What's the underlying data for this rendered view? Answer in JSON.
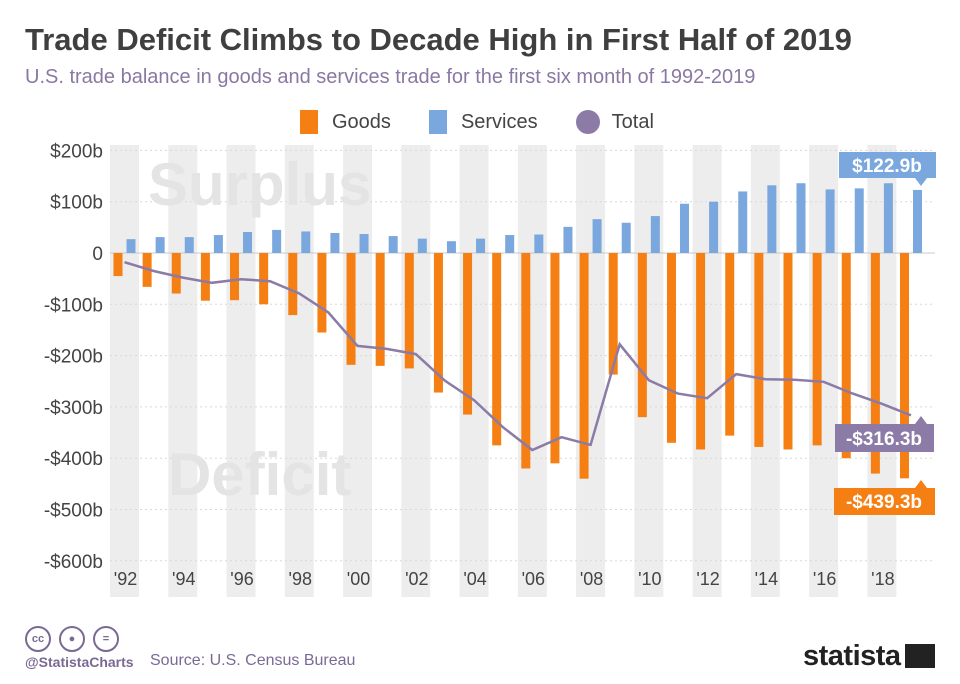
{
  "title": "Trade Deficit Climbs to Decade High in First Half of 2019",
  "subtitle": "U.S. trade balance in goods and services trade for the first six month of 1992-2019",
  "legend": {
    "goods": "Goods",
    "services": "Services",
    "total": "Total"
  },
  "annotations": {
    "surplus": "Surplus",
    "deficit": "Deficit"
  },
  "callouts": {
    "services": "$122.9b",
    "total": "-$316.3b",
    "goods": "-$439.3b"
  },
  "footer": {
    "handle": "@StatistaCharts",
    "source": "Source: U.S. Census Bureau",
    "brand": "statista"
  },
  "colors": {
    "goods": "#f57f12",
    "services": "#7aa7de",
    "total": "#8b7ba6",
    "stripe": "#ededed"
  },
  "chart_data": {
    "type": "bar",
    "x": [
      1992,
      1993,
      1994,
      1995,
      1996,
      1997,
      1998,
      1999,
      2000,
      2001,
      2002,
      2003,
      2004,
      2005,
      2006,
      2007,
      2008,
      2009,
      2010,
      2011,
      2012,
      2013,
      2014,
      2015,
      2016,
      2017,
      2018,
      2019
    ],
    "series": [
      {
        "name": "Goods",
        "type": "bar",
        "values": [
          -45,
          -66,
          -79,
          -93,
          -92,
          -100,
          -121,
          -155,
          -218,
          -220,
          -225,
          -272,
          -315,
          -375,
          -420,
          -410,
          -440,
          -237,
          -320,
          -370,
          -383,
          -356,
          -378,
          -383,
          -375,
          -400,
          -430,
          -439.3
        ]
      },
      {
        "name": "Services",
        "type": "bar",
        "values": [
          27,
          31,
          31,
          35,
          41,
          45,
          42,
          39,
          37,
          33,
          28,
          23,
          28,
          35,
          36,
          51,
          66,
          59,
          72,
          96,
          100,
          120,
          132,
          136,
          124,
          126,
          136,
          122.9
        ]
      },
      {
        "name": "Total",
        "type": "line",
        "values": [
          -18,
          -35,
          -48,
          -58,
          -51,
          -55,
          -79,
          -116,
          -181,
          -187,
          -197,
          -249,
          -287,
          -340,
          -384,
          -359,
          -374,
          -178,
          -248,
          -274,
          -283,
          -236,
          -246,
          -247,
          -251,
          -274,
          -294,
          -316.3
        ]
      }
    ],
    "ylim": [
      -600,
      200
    ],
    "yticks": [
      200,
      100,
      0,
      -100,
      -200,
      -300,
      -400,
      -500,
      -600
    ],
    "ytick_labels": [
      "$200b",
      "$100b",
      "0",
      "-$100b",
      "-$200b",
      "-$300b",
      "-$400b",
      "-$500b",
      "-$600b"
    ],
    "xtick_years": [
      1992,
      1994,
      1996,
      1998,
      2000,
      2002,
      2004,
      2006,
      2008,
      2010,
      2012,
      2014,
      2016,
      2018
    ],
    "xtick_labels": [
      "'92",
      "'94",
      "'96",
      "'98",
      "'00",
      "'02",
      "'04",
      "'06",
      "'08",
      "'10",
      "'12",
      "'14",
      "'16",
      "'18"
    ],
    "legend_position": "top-center",
    "grid": true
  }
}
